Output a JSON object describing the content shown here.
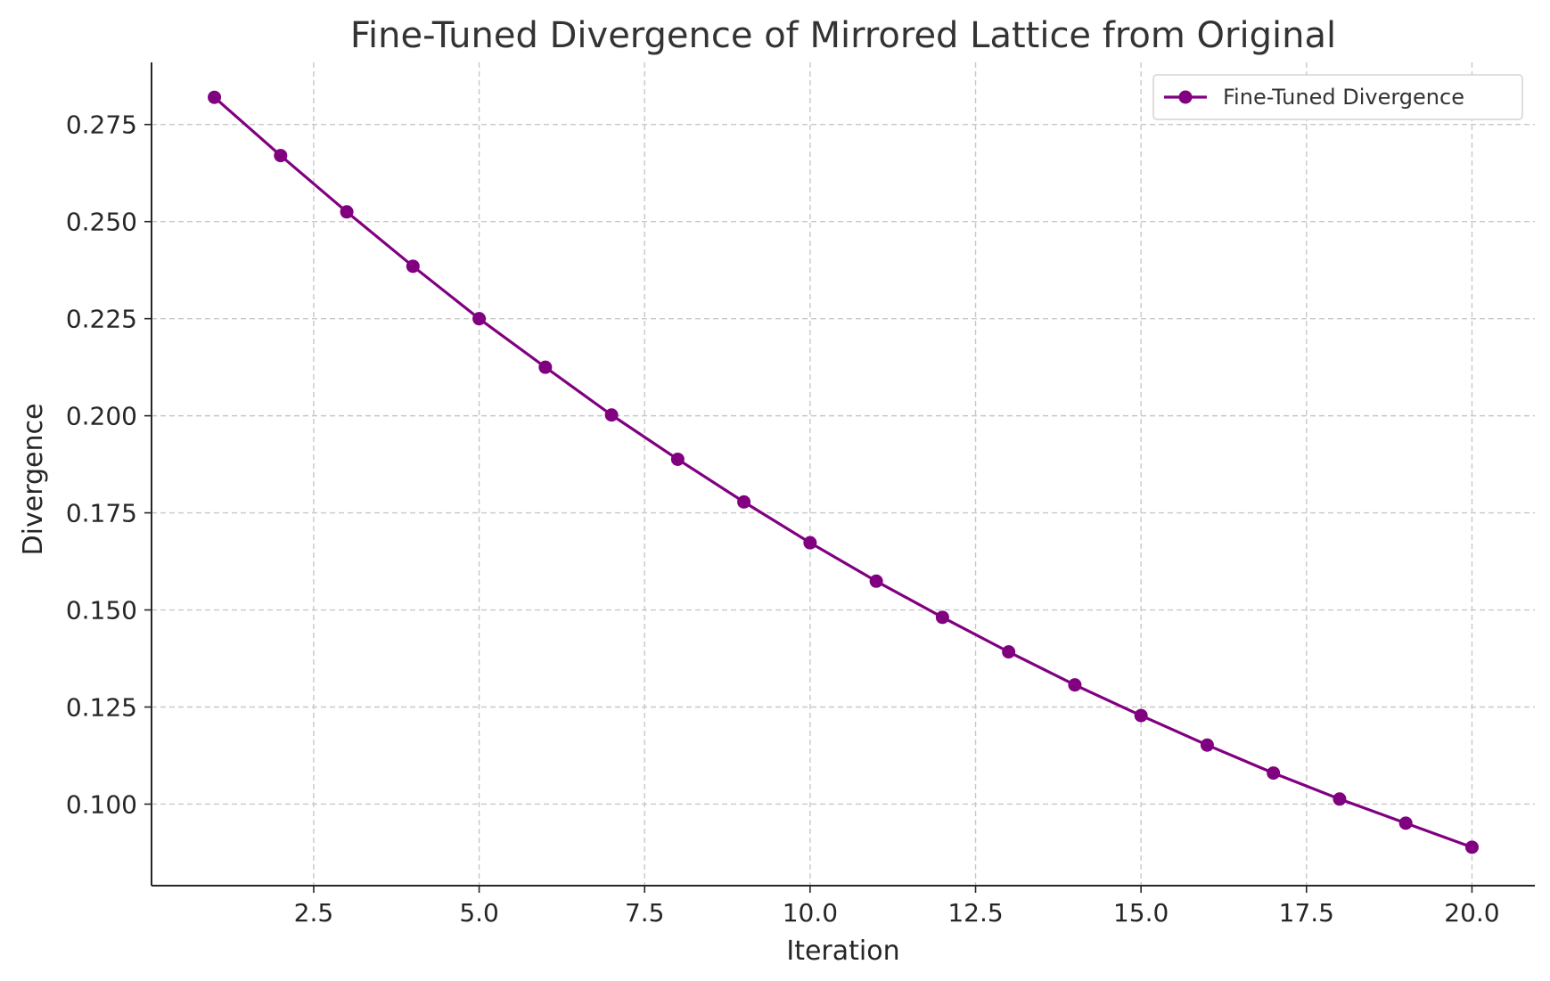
{
  "chart_data": {
    "type": "line",
    "title": "Fine-Tuned Divergence of Mirrored Lattice from Original",
    "xlabel": "Iteration",
    "ylabel": "Divergence",
    "xlim": [
      0.05,
      20.95
    ],
    "ylim": [
      0.079,
      0.291
    ],
    "x_ticks": [
      2.5,
      5.0,
      7.5,
      10.0,
      12.5,
      15.0,
      17.5,
      20.0
    ],
    "x_tick_labels": [
      "2.5",
      "5.0",
      "7.5",
      "10.0",
      "12.5",
      "15.0",
      "17.5",
      "20.0"
    ],
    "y_ticks": [
      0.1,
      0.125,
      0.15,
      0.175,
      0.2,
      0.225,
      0.25,
      0.275
    ],
    "y_tick_labels": [
      "0.100",
      "0.125",
      "0.150",
      "0.175",
      "0.200",
      "0.225",
      "0.250",
      "0.275"
    ],
    "grid": true,
    "legend_position": "top-right",
    "series": [
      {
        "name": "Fine-Tuned Divergence",
        "color": "#800080",
        "marker": "circle",
        "x": [
          1,
          2,
          3,
          4,
          5,
          6,
          7,
          8,
          9,
          10,
          11,
          12,
          13,
          14,
          15,
          16,
          17,
          18,
          19,
          20
        ],
        "values": [
          0.282,
          0.267,
          0.2525,
          0.2385,
          0.225,
          0.2125,
          0.2002,
          0.1888,
          0.1778,
          0.1673,
          0.1574,
          0.1481,
          0.1392,
          0.1307,
          0.1228,
          0.1152,
          0.108,
          0.1013,
          0.0951,
          0.0889
        ]
      }
    ]
  }
}
